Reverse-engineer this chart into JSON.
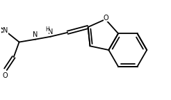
{
  "background_color": "#ffffff",
  "line_color": "#000000",
  "line_width": 1.3,
  "font_size": 7.0,
  "figsize": [
    2.46,
    1.44
  ],
  "dpi": 100,
  "xlim": [
    0,
    246
  ],
  "ylim": [
    0,
    144
  ]
}
